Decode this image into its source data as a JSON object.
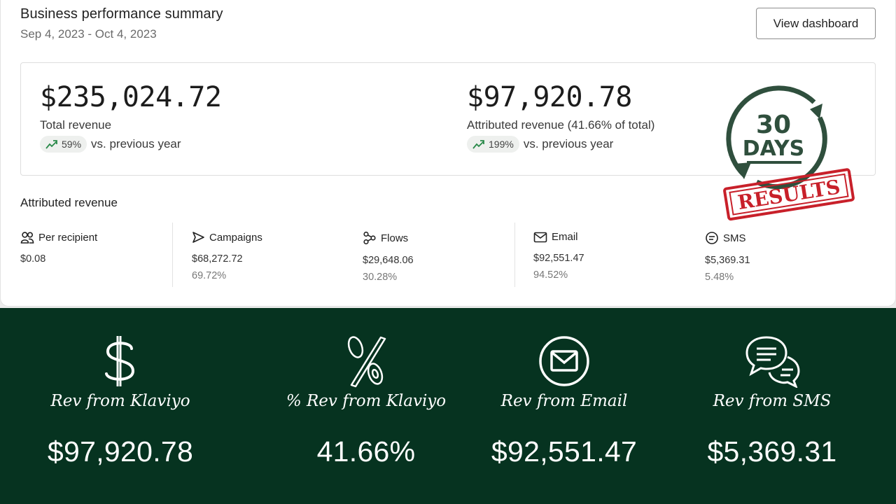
{
  "header": {
    "title": "Business performance summary",
    "date_range": "Sep 4, 2023 - Oct 4, 2023",
    "view_button": "View dashboard"
  },
  "summary": {
    "total": {
      "amount": "$235,024.72",
      "label": "Total revenue",
      "change": "59%",
      "change_suffix": "vs. previous year"
    },
    "attributed": {
      "amount": "$97,920.78",
      "label": "Attributed revenue (41.66% of total)",
      "change": "199%",
      "change_suffix": "vs. previous year"
    }
  },
  "stamp": {
    "number": "30",
    "word": "DAYS",
    "ribbon": "RESULTS"
  },
  "attributed_revenue": {
    "title": "Attributed revenue",
    "columns": [
      {
        "label": "Per recipient",
        "icon": "users-icon",
        "value": "$0.08",
        "percent": ""
      },
      {
        "label": "Campaigns",
        "icon": "send-icon",
        "value": "$68,272.72",
        "percent": "69.72%"
      },
      {
        "label": "Flows",
        "icon": "flow-icon",
        "value": "$29,648.06",
        "percent": "30.28%"
      },
      {
        "label": "Email",
        "icon": "mail-icon",
        "value": "$92,551.47",
        "percent": "94.52%"
      },
      {
        "label": "SMS",
        "icon": "sms-icon",
        "value": "$5,369.31",
        "percent": "5.48%"
      }
    ]
  },
  "banner": {
    "stats": [
      {
        "icon": "dollar-icon",
        "label": "Rev from Klaviyo",
        "value": "$97,920.78"
      },
      {
        "icon": "percent-icon",
        "label": "% Rev from Klaviyo",
        "value": "41.66%"
      },
      {
        "icon": "envelope-icon",
        "label": "Rev from Email",
        "value": "$92,551.47"
      },
      {
        "icon": "chat-icon",
        "label": "Rev from SMS",
        "value": "$5,369.31"
      }
    ]
  },
  "colors": {
    "banner_bg": "#063320",
    "stamp_green": "#2f4f3d",
    "stamp_red": "#c8202a",
    "trend_green": "#2a8a4a"
  }
}
